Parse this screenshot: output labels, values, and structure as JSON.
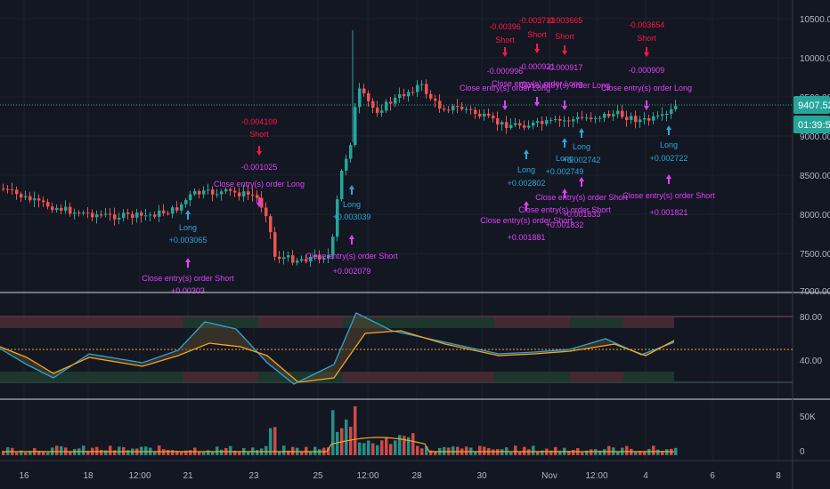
{
  "colors": {
    "background": "#131722",
    "grid": "#1e222d",
    "axis_text": "#b2b5be",
    "up": "#26a69a",
    "down": "#ef5350",
    "long_marker": "#2196f3",
    "short_marker": "#e91e63",
    "close_marker": "#e040fb",
    "short_label": "#ff1744",
    "close_label": "#e040fb",
    "long_label": "#2aa7d8",
    "osc_fast": "#2aa7d8",
    "osc_slow": "#f5a623",
    "price_tag": "#26a69a"
  },
  "x_axis": {
    "ticks": [
      "16",
      "18",
      "12:00",
      "21",
      "23",
      "25",
      "12:00",
      "28",
      "30",
      "Nov",
      "12:00",
      "4",
      "6",
      "8"
    ]
  },
  "price_panel": {
    "y_ticks": [
      "10500.00",
      "10000.00",
      "9500.00",
      "9000.00",
      "8500.00",
      "8000.00",
      "7500.00",
      "7000.00"
    ],
    "last_price": "9407.52",
    "countdown": "01:39:52"
  },
  "osc_panel": {
    "y_ticks": [
      "80.00",
      "40.00"
    ]
  },
  "volume_panel": {
    "y_ticks": [
      "50K",
      "0"
    ]
  },
  "annotations": {
    "a1": {
      "line1": "Close entry(s) order Short",
      "line2": "+0.00303"
    },
    "a2": {
      "line1": "Long",
      "line2": "+0.003065"
    },
    "a3": {
      "line1": "-0.004109",
      "line2": "Short"
    },
    "a4": {
      "line1": "-0.001025",
      "line2": "Close entry(s) order Long"
    },
    "a5": {
      "line1": "Close entry(s) order Short",
      "line2": "+0.002079"
    },
    "a6": {
      "line1": "Long",
      "line2": "+0.003039"
    },
    "a7": {
      "line1": "-0.00396",
      "line2": "Short"
    },
    "a8": {
      "line1": "-0.000996",
      "line2": "Close entry(s) order Long"
    },
    "a9": {
      "line1": "-0.003713",
      "line2": "Short"
    },
    "a10": {
      "line1": "-0.000921",
      "line2": "Close entry(s) order Long"
    },
    "a11": {
      "line1": "-0.003665",
      "line2": "Short"
    },
    "a12": {
      "line1": "-0.000917",
      "line2": "Close entry(s) order Long"
    },
    "a13": {
      "line1": "-0.003654",
      "line2": "Short"
    },
    "a14": {
      "line1": "-0.000909",
      "line2": "Close entry(s) order Long"
    },
    "a15": {
      "line1": "Long",
      "line2": "+0.002802"
    },
    "a16": {
      "line1": "Close entry(s) order Short",
      "line2": "+0.001881"
    },
    "a17": {
      "line1": "Long",
      "line2": "+0.002749"
    },
    "a18": {
      "line1": "Close entry(s) order Short",
      "line2": "+0.001832"
    },
    "a19": {
      "line1": "Long",
      "line2": "+0.002742"
    },
    "a20": {
      "line1": "Close entry(s) order Short",
      "line2": "+0.001833"
    },
    "a21": {
      "line1": "Long",
      "line2": "+0.002722"
    },
    "a22": {
      "line1": "Close entry(s) order Short",
      "line2": "+0.001821"
    }
  }
}
